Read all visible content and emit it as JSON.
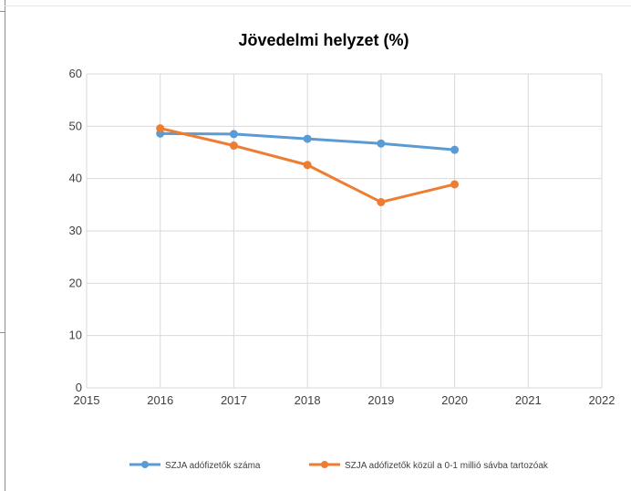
{
  "chart_data": {
    "type": "line",
    "title": "Jövedelmi helyzet (%)",
    "xlabel": "",
    "ylabel": "",
    "xlim": [
      2015,
      2022
    ],
    "ylim": [
      0,
      60
    ],
    "x_ticks": [
      "2015",
      "2016",
      "2017",
      "2018",
      "2019",
      "2020",
      "2021",
      "2022"
    ],
    "y_ticks": [
      "0",
      "10",
      "20",
      "30",
      "40",
      "50",
      "60"
    ],
    "grid": true,
    "legend_position": "bottom",
    "x": [
      2016,
      2017,
      2018,
      2019,
      2020
    ],
    "series": [
      {
        "name": "SZJA adófizetők száma",
        "color": "#5b9bd5",
        "values": [
          48.6,
          48.5,
          47.6,
          46.7,
          45.5
        ]
      },
      {
        "name": "SZJA adófizetők közül a 0-1 millió sávba tartozóak",
        "color": "#ed7d31",
        "values": [
          49.6,
          46.3,
          42.6,
          35.5,
          38.9
        ]
      }
    ]
  }
}
